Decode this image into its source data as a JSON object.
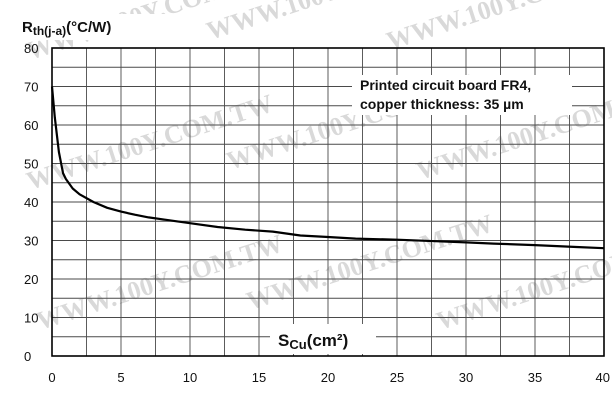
{
  "chart_data": {
    "type": "line",
    "ylabel": {
      "main": "R",
      "sub": "th(j-a)",
      "unit": "(°C/W)"
    },
    "xlabel": {
      "main": "S",
      "sub": "Cu",
      "unit": "(cm²)"
    },
    "annotation": [
      "Printed circuit board FR4,",
      "copper thickness: 35 µm"
    ],
    "xlim": [
      0,
      40
    ],
    "ylim": [
      0,
      80
    ],
    "xticks": [
      0,
      5,
      10,
      15,
      20,
      25,
      30,
      35,
      40
    ],
    "yticks": [
      0,
      10,
      20,
      30,
      40,
      50,
      60,
      70,
      80
    ],
    "x_minor_step": 2.5,
    "y_minor_step": 5,
    "grid": true,
    "series": [
      {
        "x": [
          0,
          0.2,
          0.5,
          0.8,
          1,
          1.5,
          2,
          3,
          4,
          5,
          6,
          7,
          8,
          10,
          12,
          14,
          16,
          18,
          20,
          22,
          25,
          28,
          30,
          32,
          35,
          38,
          40
        ],
        "y": [
          70,
          62,
          53,
          47.5,
          46,
          43.5,
          42,
          40,
          38.5,
          37.5,
          36.7,
          36,
          35.5,
          34.5,
          33.5,
          32.8,
          32.3,
          31.3,
          30.9,
          30.5,
          30.2,
          29.8,
          29.5,
          29.2,
          28.8,
          28.3,
          28
        ]
      }
    ],
    "watermark": "WWW.100Y.COM.TW",
    "colors": {
      "line": "#000000",
      "grid": "#4a4a4a",
      "axis": "#000000",
      "watermark": "#d9d9d9"
    }
  }
}
